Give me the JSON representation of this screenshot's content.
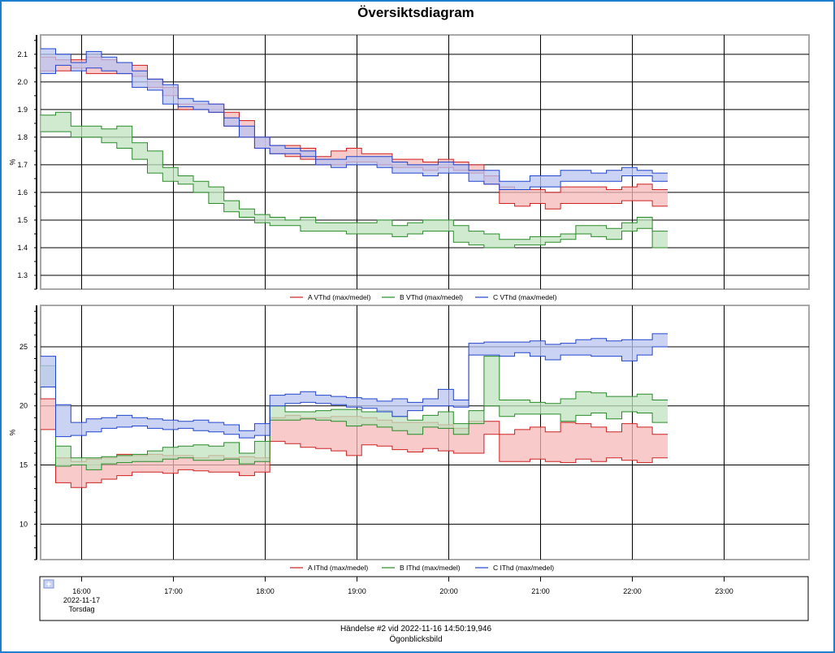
{
  "window": {
    "title": "Översiktsdiagram"
  },
  "chart_data": [
    {
      "type": "area",
      "subtype": "step-range",
      "ylabel": "%",
      "ylim": [
        1.25,
        2.17
      ],
      "yticks": [
        1.3,
        1.4,
        1.5,
        1.6,
        1.7,
        1.8,
        1.9,
        2.0,
        2.1
      ],
      "ytick_labels": [
        "1.3",
        "1.4",
        "1.5",
        "1.6",
        "1.7",
        "1.8",
        "1.9",
        "2.0",
        "2.1"
      ],
      "x_start_hour": 15.55,
      "x_step_hours": 0.1667,
      "series": [
        {
          "name": "A VThd (max/medel)",
          "color": "#cc2222",
          "fill": "#f5b8b8",
          "max": [
            2.09,
            2.08,
            2.08,
            2.09,
            2.08,
            2.07,
            2.06,
            2.01,
            1.98,
            1.92,
            1.92,
            1.92,
            1.89,
            1.86,
            1.8,
            1.77,
            1.77,
            1.76,
            1.73,
            1.75,
            1.76,
            1.74,
            1.74,
            1.72,
            1.72,
            1.71,
            1.72,
            1.71,
            1.7,
            1.66,
            1.62,
            1.61,
            1.61,
            1.6,
            1.62,
            1.62,
            1.62,
            1.61,
            1.62,
            1.63,
            1.61
          ],
          "mean": [
            2.04,
            2.04,
            2.05,
            2.03,
            2.03,
            2.03,
            2.02,
            1.98,
            1.95,
            1.9,
            1.9,
            1.89,
            1.84,
            1.8,
            1.76,
            1.74,
            1.73,
            1.72,
            1.7,
            1.7,
            1.71,
            1.71,
            1.7,
            1.69,
            1.69,
            1.68,
            1.69,
            1.68,
            1.67,
            1.63,
            1.56,
            1.55,
            1.56,
            1.54,
            1.56,
            1.56,
            1.56,
            1.56,
            1.57,
            1.57,
            1.55
          ]
        },
        {
          "name": "B VThd (max/medel)",
          "color": "#2a8a2a",
          "fill": "#bfe3bf",
          "max": [
            1.88,
            1.89,
            1.84,
            1.84,
            1.83,
            1.84,
            1.78,
            1.75,
            1.69,
            1.66,
            1.64,
            1.62,
            1.57,
            1.54,
            1.52,
            1.51,
            1.5,
            1.51,
            1.49,
            1.49,
            1.49,
            1.49,
            1.5,
            1.48,
            1.49,
            1.5,
            1.5,
            1.48,
            1.46,
            1.45,
            1.43,
            1.43,
            1.44,
            1.44,
            1.45,
            1.48,
            1.48,
            1.47,
            1.49,
            1.51,
            1.46
          ],
          "mean": [
            1.82,
            1.82,
            1.8,
            1.8,
            1.78,
            1.76,
            1.72,
            1.67,
            1.64,
            1.63,
            1.6,
            1.56,
            1.53,
            1.51,
            1.49,
            1.48,
            1.48,
            1.46,
            1.46,
            1.46,
            1.45,
            1.45,
            1.45,
            1.44,
            1.45,
            1.46,
            1.46,
            1.42,
            1.41,
            1.4,
            1.4,
            1.41,
            1.41,
            1.42,
            1.43,
            1.45,
            1.44,
            1.43,
            1.46,
            1.47,
            1.4
          ]
        },
        {
          "name": "C VThd (max/medel)",
          "color": "#2244cc",
          "fill": "#b9c4f2",
          "max": [
            2.12,
            2.1,
            2.07,
            2.11,
            2.09,
            2.07,
            2.04,
            2.01,
            1.99,
            1.94,
            1.93,
            1.92,
            1.87,
            1.84,
            1.8,
            1.77,
            1.76,
            1.75,
            1.72,
            1.72,
            1.73,
            1.73,
            1.73,
            1.71,
            1.7,
            1.7,
            1.71,
            1.7,
            1.68,
            1.68,
            1.64,
            1.64,
            1.66,
            1.66,
            1.68,
            1.68,
            1.67,
            1.68,
            1.69,
            1.68,
            1.67
          ],
          "mean": [
            2.03,
            2.06,
            2.04,
            2.05,
            2.04,
            2.03,
            1.98,
            1.97,
            1.92,
            1.91,
            1.9,
            1.89,
            1.84,
            1.8,
            1.76,
            1.74,
            1.74,
            1.73,
            1.7,
            1.69,
            1.7,
            1.7,
            1.69,
            1.67,
            1.67,
            1.66,
            1.67,
            1.67,
            1.64,
            1.63,
            1.61,
            1.61,
            1.62,
            1.62,
            1.64,
            1.64,
            1.64,
            1.64,
            1.66,
            1.66,
            1.64
          ]
        }
      ]
    },
    {
      "type": "area",
      "subtype": "step-range",
      "ylabel": "%",
      "ylim": [
        7,
        28.5
      ],
      "yticks": [
        10,
        15,
        20,
        25
      ],
      "ytick_labels": [
        "10",
        "15",
        "20",
        "25"
      ],
      "x_start_hour": 15.55,
      "x_step_hours": 0.1667,
      "series": [
        {
          "name": "A IThd (max/medel)",
          "color": "#cc2222",
          "fill": "#f5b8b8",
          "max": [
            20.6,
            15.6,
            15.3,
            15.5,
            15.6,
            15.9,
            15.8,
            15.9,
            15.8,
            15.8,
            15.6,
            15.8,
            15.6,
            15.7,
            15.6,
            19.0,
            19.2,
            19.0,
            19.0,
            19.1,
            19.1,
            19.0,
            18.8,
            18.6,
            18.6,
            18.6,
            18.4,
            18.1,
            18.7,
            18.7,
            17.6,
            18.0,
            18.2,
            17.8,
            18.6,
            18.5,
            18.2,
            17.8,
            18.5,
            18.2,
            17.6
          ],
          "mean": [
            18.0,
            13.5,
            13.1,
            13.5,
            13.8,
            14.1,
            14.4,
            14.4,
            14.3,
            14.6,
            14.5,
            14.4,
            14.4,
            14.1,
            14.4,
            17.0,
            16.8,
            16.5,
            16.4,
            16.2,
            15.8,
            16.7,
            16.6,
            16.3,
            16.1,
            16.4,
            16.2,
            16.0,
            16.0,
            17.6,
            15.3,
            15.3,
            15.5,
            15.3,
            15.2,
            15.5,
            15.3,
            15.6,
            15.4,
            15.2,
            15.6
          ]
        },
        {
          "name": "B IThd (max/medel)",
          "color": "#2a8a2a",
          "fill": "#bfe3bf",
          "max": [
            23.4,
            16.6,
            15.6,
            15.6,
            15.7,
            15.8,
            15.9,
            16.2,
            16.5,
            16.6,
            16.7,
            16.6,
            16.9,
            16.0,
            17.0,
            20.0,
            19.5,
            19.5,
            19.6,
            19.7,
            19.7,
            19.5,
            19.6,
            19.1,
            18.8,
            19.2,
            19.5,
            18.5,
            19.6,
            24.2,
            20.5,
            20.5,
            20.3,
            20.2,
            20.6,
            21.2,
            21.1,
            20.8,
            20.8,
            21.0,
            20.5
          ],
          "mean": [
            21.6,
            14.9,
            15.0,
            14.6,
            15.1,
            15.2,
            15.3,
            15.3,
            15.5,
            15.6,
            15.4,
            15.4,
            15.5,
            15.1,
            15.3,
            18.8,
            18.8,
            18.9,
            18.8,
            18.7,
            18.3,
            18.4,
            18.2,
            17.9,
            17.6,
            18.2,
            18.1,
            17.6,
            18.5,
            20.0,
            19.1,
            19.3,
            19.3,
            19.3,
            18.7,
            19.2,
            19.4,
            18.9,
            19.5,
            19.4,
            18.6
          ]
        },
        {
          "name": "C IThd (max/medel)",
          "color": "#2244cc",
          "fill": "#b9c4f2",
          "max": [
            24.2,
            20.1,
            18.6,
            18.9,
            19.0,
            19.2,
            19.0,
            18.9,
            18.8,
            18.7,
            18.8,
            18.6,
            18.4,
            17.9,
            18.5,
            20.9,
            21.0,
            21.2,
            20.9,
            20.8,
            20.7,
            20.6,
            20.4,
            20.6,
            20.3,
            20.6,
            21.4,
            20.5,
            25.3,
            25.4,
            25.4,
            25.4,
            25.5,
            25.2,
            25.3,
            25.6,
            25.7,
            25.5,
            25.6,
            25.6,
            26.1
          ],
          "mean": [
            21.6,
            17.4,
            17.5,
            17.8,
            18.1,
            18.2,
            18.3,
            18.1,
            18.0,
            18.1,
            17.9,
            17.8,
            17.6,
            17.3,
            17.5,
            20.0,
            20.2,
            20.3,
            20.2,
            20.1,
            19.9,
            19.8,
            19.5,
            19.1,
            19.6,
            20.0,
            20.0,
            19.9,
            24.3,
            24.3,
            24.2,
            24.5,
            24.2,
            23.9,
            24.3,
            24.3,
            24.2,
            24.2,
            23.8,
            24.3,
            25.0
          ]
        }
      ]
    }
  ],
  "legend_top": [
    "A VThd (max/medel)",
    "B VThd (max/medel)",
    "C VThd (max/medel)"
  ],
  "legend_bottom": [
    "A IThd (max/medel)",
    "B IThd (max/medel)",
    "C IThd (max/medel)"
  ],
  "axis_y_unit": "%",
  "time_axis": {
    "labels": [
      "16:00",
      "17:00",
      "18:00",
      "19:00",
      "20:00",
      "21:00",
      "22:00",
      "23:00"
    ],
    "hours": [
      16,
      17,
      18,
      19,
      20,
      21,
      22,
      23
    ],
    "date": "2022-11-17",
    "weekday": "Torsdag",
    "expand_icon": "plus-icon"
  },
  "footer": {
    "event": "Händelse #2 vid 2022-11-16 14:50:19,946",
    "mode": "Ögonblicksbild"
  },
  "colors": {
    "frame": "#1e7fd0",
    "A": "#cc2222",
    "B": "#2a8a2a",
    "C": "#2244cc"
  }
}
